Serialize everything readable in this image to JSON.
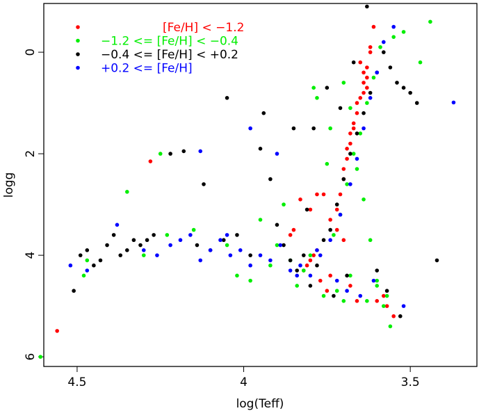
{
  "chart_data": {
    "type": "scatter",
    "x_label": "log(Teff)",
    "y_label": "logg",
    "xlim": [
      4.6,
      3.3
    ],
    "ylim": [
      6.19,
      -0.96
    ],
    "xticks": [
      4.5,
      4,
      3.5
    ],
    "yticks": [
      0,
      2,
      4,
      6
    ],
    "legend": "top-left",
    "series": [
      {
        "name": "[Fe/H] < −1.2",
        "color": "#ff0000",
        "x": [
          3.62,
          3.63,
          3.64,
          3.65,
          3.66,
          3.67,
          3.68,
          3.69,
          3.7,
          3.71,
          3.72,
          3.63,
          3.64,
          3.66,
          3.68,
          3.7,
          3.62,
          3.61,
          3.64,
          3.67,
          3.74,
          3.78,
          3.8,
          3.82,
          3.77,
          3.75,
          3.79,
          3.81,
          3.85,
          3.83,
          3.76,
          3.72,
          3.7,
          3.68,
          3.66,
          3.58,
          3.57,
          3.55,
          3.6,
          4.28,
          4.56,
          3.8,
          3.78,
          3.86,
          3.74,
          3.65,
          3.69,
          3.63
        ],
        "y": [
          0.0,
          0.3,
          0.6,
          0.9,
          1.2,
          1.5,
          1.8,
          2.1,
          2.5,
          2.8,
          3.1,
          0.5,
          0.8,
          1.0,
          1.6,
          2.3,
          -0.1,
          -0.5,
          0.4,
          1.4,
          3.3,
          3.9,
          4.1,
          4.3,
          4.5,
          4.7,
          4.0,
          4.2,
          3.5,
          2.9,
          2.8,
          3.5,
          3.7,
          4.6,
          4.9,
          4.8,
          5.0,
          5.2,
          4.9,
          2.15,
          5.49,
          3.1,
          2.8,
          3.6,
          4.4,
          0.2,
          1.9,
          0.7
        ]
      },
      {
        "name": "−1.2 <= [Fe/H] < −0.4",
        "color": "#00ee00",
        "x": [
          4.61,
          4.47,
          4.48,
          4.35,
          4.25,
          4.15,
          4.05,
          3.98,
          3.92,
          3.88,
          3.84,
          3.8,
          3.76,
          3.73,
          3.71,
          3.69,
          3.67,
          3.65,
          3.63,
          3.61,
          3.59,
          3.55,
          3.52,
          3.47,
          3.44,
          3.78,
          3.74,
          3.7,
          3.68,
          3.66,
          3.64,
          3.62,
          3.6,
          3.58,
          3.56,
          3.82,
          3.86,
          3.9,
          3.95,
          4.02,
          3.72,
          3.7,
          3.68,
          3.75,
          3.79,
          4.23,
          4.3,
          3.57,
          3.6,
          3.63
        ],
        "y": [
          6.0,
          4.1,
          4.4,
          2.75,
          2.0,
          3.5,
          3.8,
          4.5,
          4.2,
          3.0,
          4.6,
          4.0,
          4.8,
          3.6,
          3.2,
          2.6,
          2.0,
          1.6,
          1.0,
          0.5,
          -0.1,
          -0.3,
          -0.4,
          0.2,
          -0.6,
          0.9,
          1.5,
          0.6,
          1.1,
          2.3,
          2.9,
          3.7,
          4.5,
          5.0,
          5.4,
          4.3,
          4.1,
          3.8,
          3.3,
          4.4,
          4.7,
          4.9,
          4.4,
          2.2,
          0.7,
          3.6,
          4.0,
          4.8,
          4.6,
          4.9
        ]
      },
      {
        "name": "−0.4 <= [Fe/H] < +0.2",
        "color": "#000000",
        "x": [
          4.51,
          4.49,
          4.47,
          4.45,
          4.43,
          4.41,
          4.39,
          4.37,
          4.35,
          4.33,
          4.31,
          4.29,
          4.27,
          4.22,
          4.18,
          4.14,
          4.1,
          4.06,
          4.02,
          3.98,
          3.95,
          3.92,
          3.9,
          3.88,
          3.86,
          3.84,
          3.82,
          3.8,
          3.78,
          3.76,
          3.74,
          3.72,
          3.7,
          3.68,
          3.66,
          3.64,
          3.62,
          3.6,
          3.58,
          3.56,
          3.54,
          3.52,
          3.5,
          3.48,
          3.42,
          3.63,
          3.67,
          3.71,
          3.75,
          3.79,
          3.85,
          3.94,
          4.05,
          4.12,
          3.6,
          3.57,
          3.53,
          3.69,
          3.73,
          3.81
        ],
        "y": [
          4.7,
          4.0,
          3.9,
          4.2,
          4.1,
          3.8,
          3.6,
          4.0,
          3.9,
          3.7,
          3.8,
          3.7,
          3.6,
          2.0,
          1.95,
          3.8,
          3.9,
          3.7,
          3.6,
          4.0,
          1.9,
          2.5,
          3.4,
          3.8,
          4.1,
          4.3,
          4.0,
          4.6,
          4.2,
          3.7,
          3.5,
          3.0,
          2.5,
          2.0,
          1.6,
          1.2,
          0.8,
          0.4,
          0.0,
          0.3,
          0.6,
          0.7,
          0.8,
          1.0,
          4.1,
          -0.9,
          0.2,
          1.1,
          0.7,
          1.5,
          1.5,
          1.2,
          0.9,
          2.6,
          4.3,
          4.7,
          5.2,
          4.4,
          4.8,
          3.1
        ]
      },
      {
        "name": "+0.2 <= [Fe/H]",
        "color": "#0000ff",
        "x": [
          4.52,
          4.47,
          4.38,
          4.3,
          4.26,
          4.22,
          4.19,
          4.16,
          4.13,
          4.1,
          4.07,
          4.04,
          4.01,
          3.98,
          3.95,
          3.92,
          3.89,
          3.86,
          3.83,
          3.8,
          3.77,
          3.74,
          3.71,
          3.68,
          3.66,
          3.64,
          3.62,
          3.6,
          3.58,
          3.55,
          3.37,
          4.13,
          4.05,
          3.98,
          3.9,
          3.84,
          3.78,
          3.72,
          3.69,
          3.65,
          3.61,
          3.52
        ],
        "y": [
          4.2,
          4.3,
          3.4,
          3.9,
          4.0,
          3.8,
          3.7,
          3.6,
          1.95,
          3.9,
          3.7,
          4.0,
          3.9,
          4.2,
          4.0,
          4.1,
          3.8,
          4.3,
          4.2,
          4.4,
          4.0,
          3.7,
          3.2,
          2.6,
          2.1,
          1.5,
          0.9,
          0.4,
          -0.2,
          -0.5,
          0.99,
          4.1,
          3.6,
          1.5,
          2.0,
          4.4,
          3.9,
          4.5,
          4.7,
          4.8,
          4.5,
          5.0
        ]
      }
    ]
  }
}
